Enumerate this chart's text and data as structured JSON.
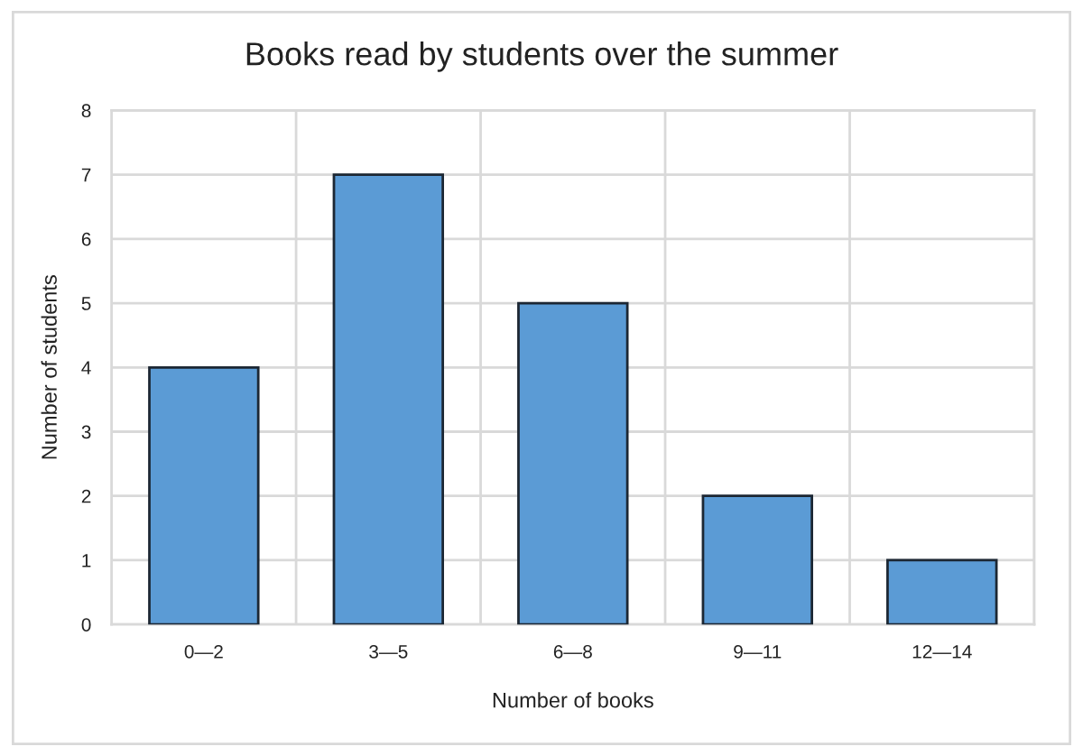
{
  "chart_data": {
    "type": "bar",
    "title": "Books read by students over the summer",
    "xlabel": "Number of books",
    "ylabel": "Number of students",
    "categories": [
      "0—2",
      "3—5",
      "6—8",
      "9—11",
      "12—14"
    ],
    "series": [
      {
        "color": "#5b9bd5",
        "values": [
          4,
          7,
          5,
          2,
          1
        ]
      }
    ],
    "ylim": [
      0,
      8
    ],
    "yticks": [
      0,
      1,
      2,
      3,
      4,
      5,
      6,
      7,
      8
    ],
    "grid": true,
    "legend": false
  }
}
